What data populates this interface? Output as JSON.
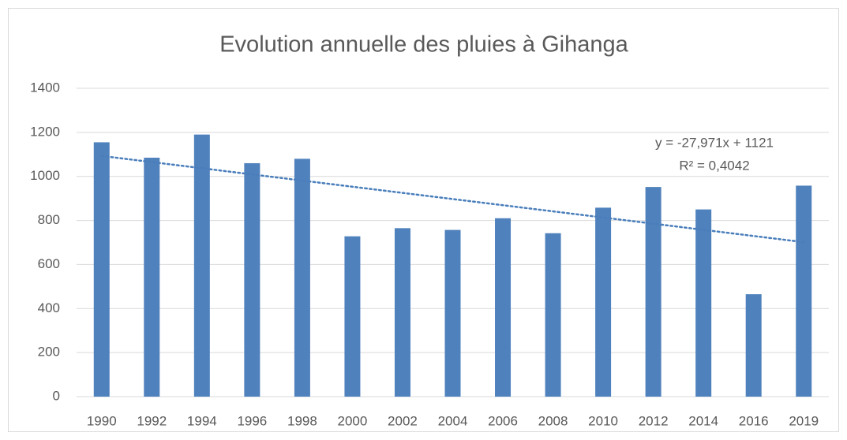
{
  "chart_data": {
    "type": "bar",
    "title": "Evolution annuelle des pluies à Gihanga",
    "categories": [
      "1990",
      "1992",
      "1994",
      "1996",
      "1998",
      "2000",
      "2002",
      "2004",
      "2006",
      "2008",
      "2010",
      "2012",
      "2014",
      "2016",
      "2019"
    ],
    "values": [
      1155,
      1085,
      1190,
      1060,
      1080,
      728,
      765,
      757,
      810,
      742,
      858,
      952,
      850,
      465,
      958
    ],
    "color": "#4f81bd",
    "ylim": [
      0,
      1400
    ],
    "yticks": [
      0,
      200,
      400,
      600,
      800,
      1000,
      1200,
      1400
    ],
    "grid": true,
    "trendline": {
      "slope": -27.971,
      "intercept": 1121,
      "color": "#4a7ebb",
      "label": "y = -27,971x + 1121",
      "r2_label": "R² = 0,4042"
    }
  }
}
